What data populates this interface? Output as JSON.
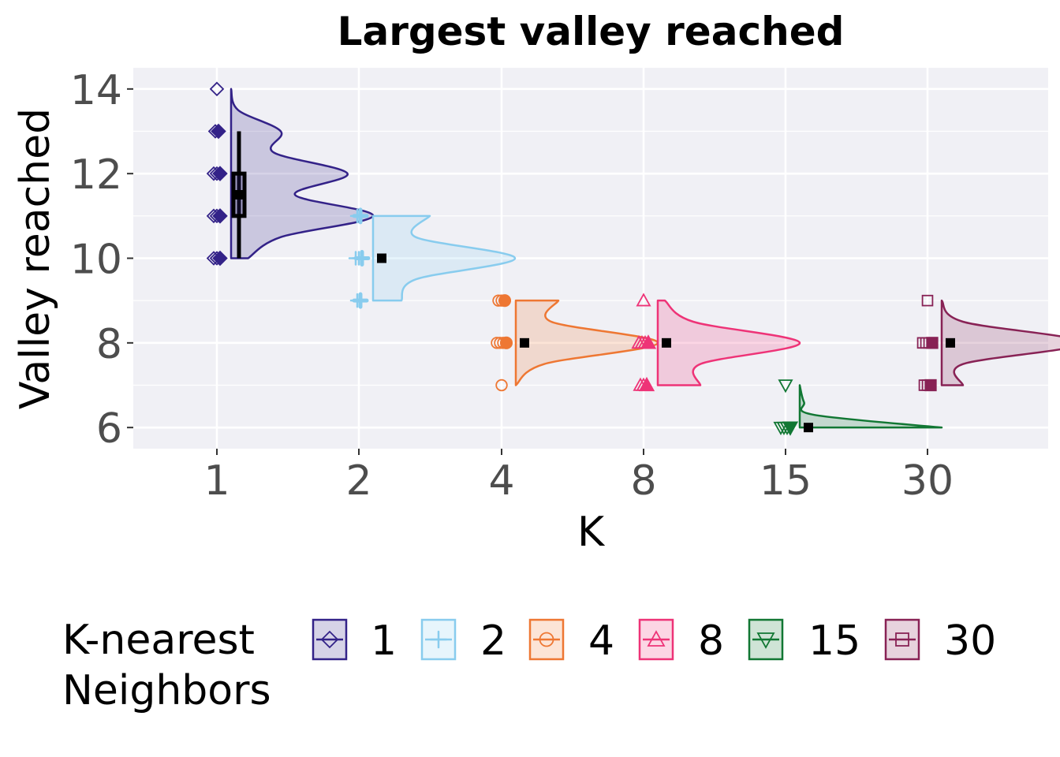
{
  "chart_data": {
    "type": "raincloud",
    "title": "Largest valley reached",
    "xlabel": "K",
    "ylabel": "Valley reached",
    "ylim": [
      5.5,
      14.5
    ],
    "yticks": [
      "6",
      "8",
      "10",
      "12",
      "14"
    ],
    "grid": true,
    "legend_position": "bottom",
    "legend_title": [
      "K-nearest",
      "Neighbors"
    ],
    "groups": [
      {
        "name": "1",
        "color": "#332288",
        "shape": "diamond",
        "mean": 11.5,
        "min": 10,
        "max": 14,
        "box": {
          "whisker_low": 10,
          "q1": 11,
          "median": 11.5,
          "q3": 12,
          "whisker_high": 13
        },
        "points": [
          {
            "y": 10,
            "n": 3
          },
          {
            "y": 11,
            "n": 3
          },
          {
            "y": 12,
            "n": 3
          },
          {
            "y": 13,
            "n": 2
          },
          {
            "y": 14,
            "n": 1
          }
        ],
        "density": [
          [
            10,
            0.12
          ],
          [
            10.5,
            0.35
          ],
          [
            11,
            1.0
          ],
          [
            11.5,
            0.45
          ],
          [
            12,
            0.82
          ],
          [
            12.5,
            0.3
          ],
          [
            13,
            0.35
          ],
          [
            13.5,
            0.05
          ],
          [
            14,
            0.0
          ]
        ]
      },
      {
        "name": "2",
        "color": "#88CCEE",
        "shape": "plus",
        "mean": 10,
        "min": 9,
        "max": 11,
        "points": [
          {
            "y": 9,
            "n": 2
          },
          {
            "y": 10,
            "n": 3
          },
          {
            "y": 11,
            "n": 2
          }
        ],
        "density": [
          [
            9,
            0.2
          ],
          [
            9.5,
            0.3
          ],
          [
            10,
            1.0
          ],
          [
            10.5,
            0.3
          ],
          [
            11,
            0.4
          ]
        ]
      },
      {
        "name": "4",
        "color": "#EE7733",
        "shape": "circle",
        "mean": 8,
        "min": 7,
        "max": 9,
        "points": [
          {
            "y": 7,
            "n": 1
          },
          {
            "y": 8,
            "n": 4
          },
          {
            "y": 9,
            "n": 3
          }
        ],
        "density": [
          [
            7,
            0.0
          ],
          [
            7.5,
            0.2
          ],
          [
            8,
            1.0
          ],
          [
            8.5,
            0.25
          ],
          [
            9,
            0.3
          ]
        ]
      },
      {
        "name": "8",
        "color": "#EE3377",
        "shape": "triangle",
        "mean": 8,
        "min": 7,
        "max": 9,
        "points": [
          {
            "y": 7,
            "n": 3
          },
          {
            "y": 8,
            "n": 4
          },
          {
            "y": 9,
            "n": 1
          }
        ],
        "density": [
          [
            7,
            0.3
          ],
          [
            7.5,
            0.3
          ],
          [
            8,
            1.0
          ],
          [
            8.5,
            0.25
          ],
          [
            9,
            0.05
          ]
        ]
      },
      {
        "name": "15",
        "color": "#117733",
        "shape": "triangle-down",
        "mean": 6,
        "min": 6,
        "max": 7,
        "points": [
          {
            "y": 6,
            "n": 4
          },
          {
            "y": 7,
            "n": 1
          }
        ],
        "density": [
          [
            6,
            1.0
          ],
          [
            6.3,
            0.1
          ],
          [
            6.6,
            0.03
          ],
          [
            7,
            0.0
          ]
        ]
      },
      {
        "name": "30",
        "color": "#882255",
        "shape": "square",
        "mean": 8,
        "min": 7,
        "max": 9,
        "points": [
          {
            "y": 7,
            "n": 3
          },
          {
            "y": 8,
            "n": 4
          },
          {
            "y": 9,
            "n": 1
          }
        ],
        "density": [
          [
            7,
            0.15
          ],
          [
            7.5,
            0.15
          ],
          [
            8,
            1.0
          ],
          [
            8.5,
            0.15
          ],
          [
            9,
            0.0
          ]
        ]
      }
    ]
  }
}
